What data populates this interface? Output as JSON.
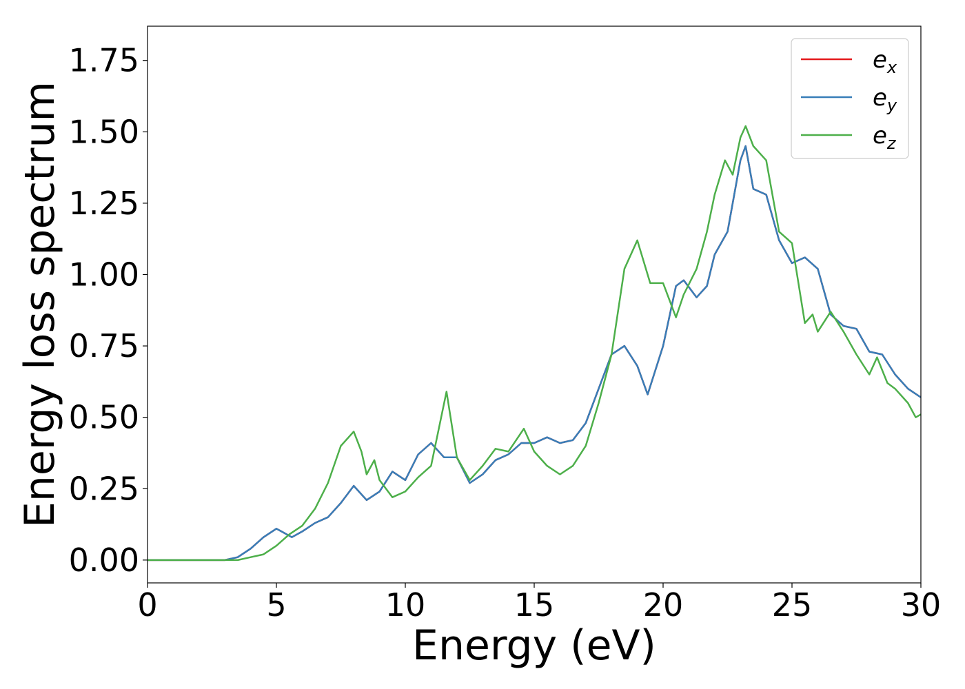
{
  "chart_data": {
    "type": "line",
    "title": "",
    "xlabel": "Energy (eV)",
    "ylabel": "Energy loss spectrum",
    "xlim": [
      0,
      30
    ],
    "ylim": [
      -0.08,
      1.87
    ],
    "xticks": [
      0,
      5,
      10,
      15,
      20,
      25,
      30
    ],
    "xtick_labels": [
      "0",
      "5",
      "10",
      "15",
      "20",
      "25",
      "30"
    ],
    "yticks": [
      0.0,
      0.25,
      0.5,
      0.75,
      1.0,
      1.25,
      1.5,
      1.75
    ],
    "ytick_labels": [
      "0.00",
      "0.25",
      "0.50",
      "0.75",
      "1.00",
      "1.25",
      "1.50",
      "1.75"
    ],
    "grid": false,
    "legend_position": "top-right",
    "series": [
      {
        "name": "e_x",
        "label_base": "e",
        "label_sub": "x",
        "color": "#e41a1c",
        "x": [
          0,
          2,
          3,
          3.5,
          4,
          4.5,
          5,
          5.2,
          5.6,
          6,
          6.5,
          7,
          7.5,
          8,
          8.5,
          9,
          9.5,
          10,
          10.5,
          11,
          11.5,
          12,
          12.5,
          13,
          13.5,
          14,
          14.5,
          15,
          15.5,
          16,
          16.5,
          17,
          17.5,
          18,
          18.5,
          19,
          19.4,
          20,
          20.5,
          20.8,
          21.3,
          21.7,
          22,
          22.5,
          23,
          23.2,
          23.5,
          24,
          24.5,
          25,
          25.5,
          26,
          26.5,
          27,
          27.5,
          28,
          28.5,
          29,
          29.5,
          30
        ],
        "y": [
          0,
          0.0,
          0.0,
          0.01,
          0.04,
          0.08,
          0.11,
          0.1,
          0.08,
          0.1,
          0.13,
          0.15,
          0.2,
          0.26,
          0.21,
          0.24,
          0.31,
          0.28,
          0.37,
          0.41,
          0.36,
          0.36,
          0.27,
          0.3,
          0.35,
          0.37,
          0.41,
          0.41,
          0.43,
          0.41,
          0.42,
          0.48,
          0.6,
          0.72,
          0.75,
          0.68,
          0.58,
          0.75,
          0.96,
          0.98,
          0.92,
          0.96,
          1.07,
          1.15,
          1.4,
          1.45,
          1.3,
          1.28,
          1.12,
          1.04,
          1.06,
          1.02,
          0.86,
          0.82,
          0.81,
          0.73,
          0.72,
          0.65,
          0.6,
          0.57
        ]
      },
      {
        "name": "e_y",
        "label_base": "e",
        "label_sub": "y",
        "color": "#377eb8",
        "x": [
          0,
          2,
          3,
          3.5,
          4,
          4.5,
          5,
          5.2,
          5.6,
          6,
          6.5,
          7,
          7.5,
          8,
          8.5,
          9,
          9.5,
          10,
          10.5,
          11,
          11.5,
          12,
          12.5,
          13,
          13.5,
          14,
          14.5,
          15,
          15.5,
          16,
          16.5,
          17,
          17.5,
          18,
          18.5,
          19,
          19.4,
          20,
          20.5,
          20.8,
          21.3,
          21.7,
          22,
          22.5,
          23,
          23.2,
          23.5,
          24,
          24.5,
          25,
          25.5,
          26,
          26.5,
          27,
          27.5,
          28,
          28.5,
          29,
          29.5,
          30
        ],
        "y": [
          0,
          0.0,
          0.0,
          0.01,
          0.04,
          0.08,
          0.11,
          0.1,
          0.08,
          0.1,
          0.13,
          0.15,
          0.2,
          0.26,
          0.21,
          0.24,
          0.31,
          0.28,
          0.37,
          0.41,
          0.36,
          0.36,
          0.27,
          0.3,
          0.35,
          0.37,
          0.41,
          0.41,
          0.43,
          0.41,
          0.42,
          0.48,
          0.6,
          0.72,
          0.75,
          0.68,
          0.58,
          0.75,
          0.96,
          0.98,
          0.92,
          0.96,
          1.07,
          1.15,
          1.4,
          1.45,
          1.3,
          1.28,
          1.12,
          1.04,
          1.06,
          1.02,
          0.86,
          0.82,
          0.81,
          0.73,
          0.72,
          0.65,
          0.6,
          0.57
        ]
      },
      {
        "name": "e_z",
        "label_base": "e",
        "label_sub": "z",
        "color": "#4daf4a",
        "x": [
          0,
          2,
          3,
          3.5,
          4,
          4.5,
          5,
          5.5,
          6,
          6.5,
          7,
          7.5,
          8,
          8.3,
          8.5,
          8.8,
          9,
          9.5,
          10,
          10.5,
          11,
          11.6,
          12,
          12.5,
          13,
          13.5,
          14,
          14.6,
          15,
          15.5,
          16,
          16.5,
          17,
          17.5,
          18,
          18.5,
          19,
          19.5,
          20,
          20.5,
          20.8,
          21.3,
          21.7,
          22,
          22.4,
          22.7,
          23,
          23.2,
          23.5,
          24,
          24.5,
          25,
          25.5,
          25.8,
          26,
          26.5,
          27,
          27.5,
          28,
          28.3,
          28.7,
          29,
          29.5,
          29.8,
          30
        ],
        "y": [
          0,
          0.0,
          0.0,
          0.0,
          0.01,
          0.02,
          0.05,
          0.09,
          0.12,
          0.18,
          0.27,
          0.4,
          0.45,
          0.38,
          0.3,
          0.35,
          0.28,
          0.22,
          0.24,
          0.29,
          0.33,
          0.59,
          0.36,
          0.28,
          0.33,
          0.39,
          0.38,
          0.46,
          0.38,
          0.33,
          0.3,
          0.33,
          0.4,
          0.55,
          0.72,
          1.02,
          1.12,
          0.97,
          0.97,
          0.85,
          0.93,
          1.02,
          1.15,
          1.28,
          1.4,
          1.35,
          1.48,
          1.52,
          1.45,
          1.4,
          1.15,
          1.11,
          0.83,
          0.86,
          0.8,
          0.87,
          0.8,
          0.72,
          0.65,
          0.71,
          0.62,
          0.6,
          0.55,
          0.5,
          0.51
        ]
      }
    ]
  }
}
